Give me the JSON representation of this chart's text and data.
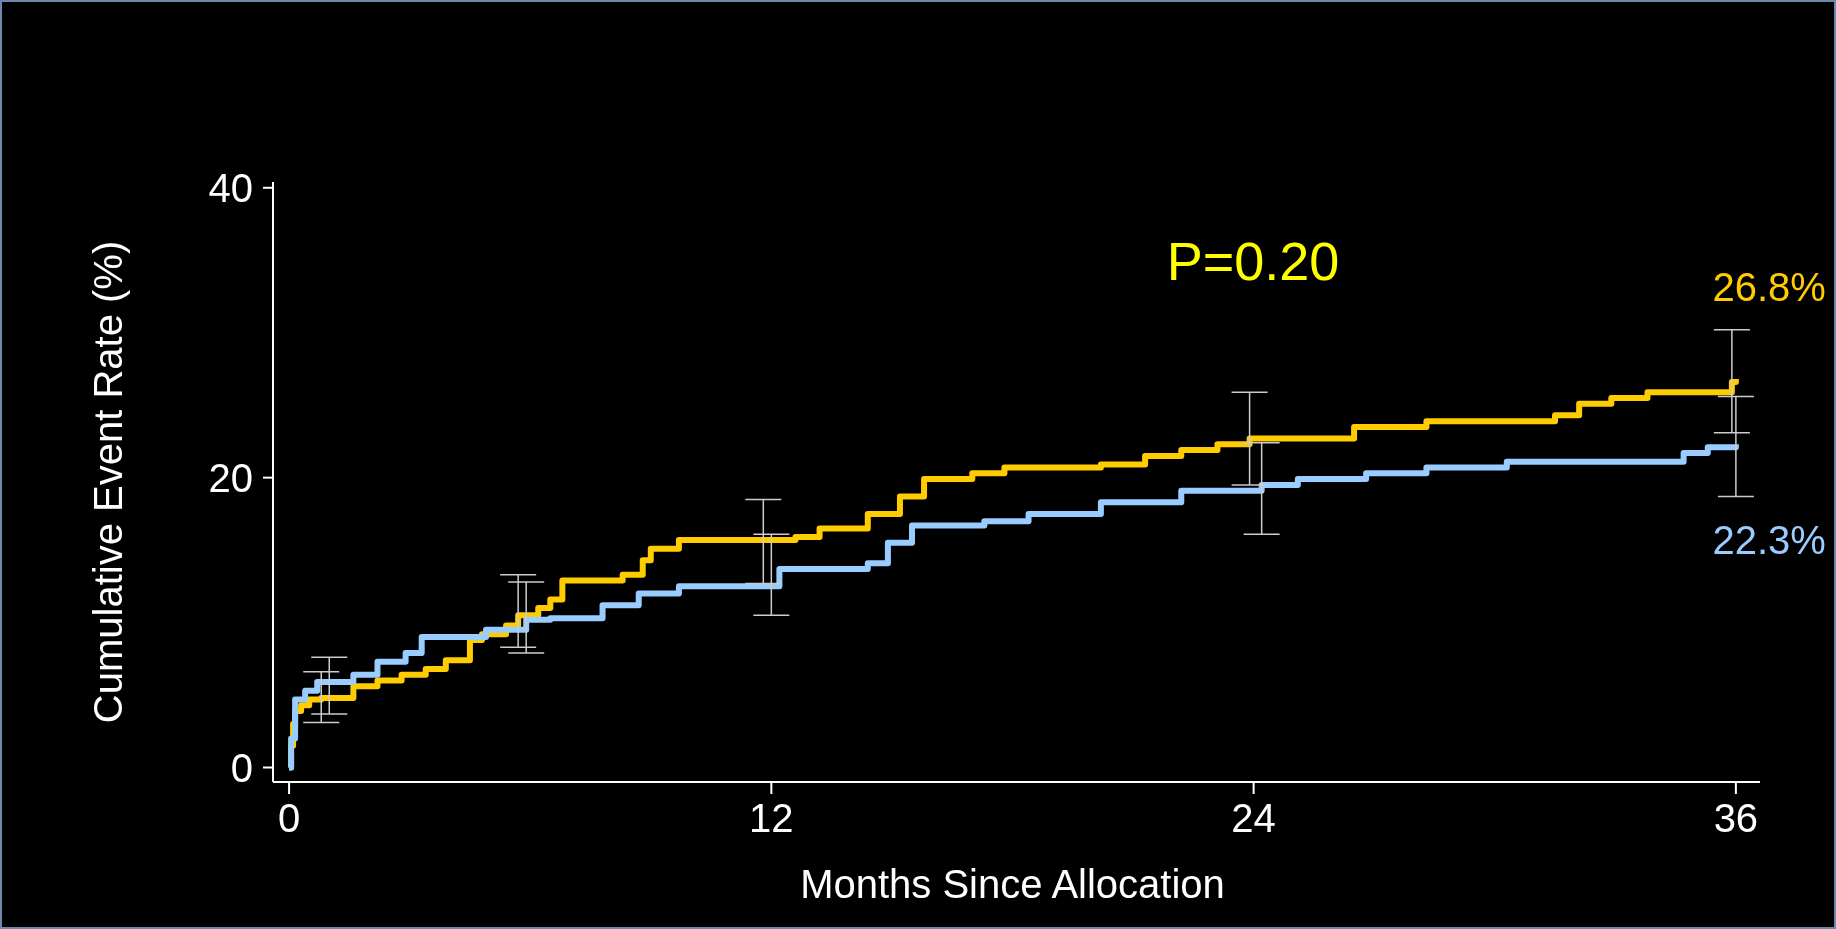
{
  "chart_data": {
    "type": "step",
    "xlabel": "Months Since Allocation",
    "ylabel": "Cumulative Event Rate (%)",
    "xlim": [
      -0.4,
      36.6
    ],
    "xticks": [
      0,
      12,
      24,
      36
    ],
    "ylim": [
      -1,
      40.4
    ],
    "yticks": [
      0,
      20,
      40
    ],
    "annotations": [
      "P=0.20"
    ],
    "series": [
      {
        "color": "#ffcc00",
        "x": [
          0,
          0.05,
          0.1,
          0.15,
          0.3,
          0.5,
          0.8,
          1.6,
          2.2,
          2.8,
          3.4,
          3.9,
          4.5,
          4.8,
          5.4,
          5.7,
          6.2,
          6.5,
          6.8,
          8.3,
          8.8,
          9.0,
          9.7,
          11.8,
          12.6,
          13.2,
          14.4,
          15.2,
          15.8,
          17.0,
          17.8,
          20.2,
          21.3,
          22.2,
          23.1,
          23.9,
          26.5,
          28.3,
          31.5,
          32.1,
          32.9,
          33.8,
          35.9,
          36
        ],
        "values": [
          0,
          1.5,
          3.0,
          3.9,
          4.3,
          4.7,
          4.8,
          5.6,
          6.0,
          6.4,
          6.8,
          7.4,
          8.8,
          9.2,
          9.8,
          10.5,
          11.0,
          11.6,
          12.9,
          13.3,
          14.3,
          15.1,
          15.7,
          15.7,
          15.9,
          16.5,
          17.5,
          18.7,
          19.9,
          20.3,
          20.7,
          20.9,
          21.5,
          21.9,
          22.3,
          22.7,
          23.5,
          23.9,
          24.3,
          25.1,
          25.5,
          25.9,
          26.6,
          26.8
        ],
        "errors": [
          null,
          null,
          null,
          null,
          null,
          null,
          [
            3.1,
            6.6
          ],
          null,
          null,
          null,
          null,
          null,
          null,
          null,
          null,
          [
            8.3,
            13.3
          ],
          null,
          null,
          null,
          null,
          null,
          null,
          null,
          [
            12.7,
            18.5
          ],
          null,
          null,
          null,
          null,
          null,
          null,
          null,
          null,
          null,
          null,
          null,
          [
            19.5,
            25.9
          ],
          null,
          null,
          null,
          null,
          null,
          null,
          [
            23.1,
            30.2
          ],
          null
        ],
        "value_labels": [
          null,
          null,
          null,
          null,
          null,
          null,
          null,
          null,
          null,
          null,
          null,
          null,
          null,
          null,
          null,
          null,
          null,
          null,
          null,
          null,
          null,
          null,
          null,
          null,
          null,
          null,
          null,
          null,
          null,
          null,
          null,
          null,
          null,
          null,
          null,
          null,
          null,
          null,
          null,
          null,
          null,
          null,
          null,
          "26.8%"
        ]
      },
      {
        "color": "#99ccff",
        "x": [
          0,
          0.05,
          0.15,
          0.4,
          0.7,
          1.0,
          1.6,
          2.2,
          2.9,
          3.3,
          4.9,
          5.9,
          6.5,
          7.8,
          8.7,
          9.7,
          12.0,
          12.2,
          14.4,
          14.9,
          15.5,
          17.3,
          18.4,
          20.2,
          22.2,
          24.2,
          25.1,
          26.8,
          28.3,
          30.3,
          34.7,
          35.3,
          36
        ],
        "values": [
          0,
          2.0,
          4.7,
          5.3,
          5.9,
          5.9,
          6.4,
          7.3,
          7.9,
          9.0,
          9.5,
          10.2,
          10.3,
          11.2,
          12.0,
          12.5,
          12.5,
          13.7,
          14.1,
          15.5,
          16.7,
          17.0,
          17.5,
          18.3,
          19.1,
          19.5,
          19.9,
          20.3,
          20.7,
          21.1,
          21.7,
          22.1,
          22.3
        ],
        "errors": [
          null,
          null,
          null,
          null,
          null,
          [
            3.7,
            7.6
          ],
          null,
          null,
          null,
          null,
          null,
          [
            7.9,
            12.8
          ],
          null,
          null,
          null,
          null,
          [
            10.5,
            16.1
          ],
          null,
          null,
          null,
          null,
          null,
          null,
          null,
          null,
          [
            16.1,
            22.4
          ],
          null,
          null,
          null,
          null,
          null,
          null,
          [
            18.7,
            25.6
          ]
        ],
        "value_labels": [
          null,
          null,
          null,
          null,
          null,
          null,
          null,
          null,
          null,
          null,
          null,
          null,
          null,
          null,
          null,
          null,
          null,
          null,
          null,
          null,
          null,
          null,
          null,
          null,
          null,
          null,
          null,
          null,
          null,
          null,
          null,
          null,
          "22.3%"
        ]
      }
    ]
  }
}
